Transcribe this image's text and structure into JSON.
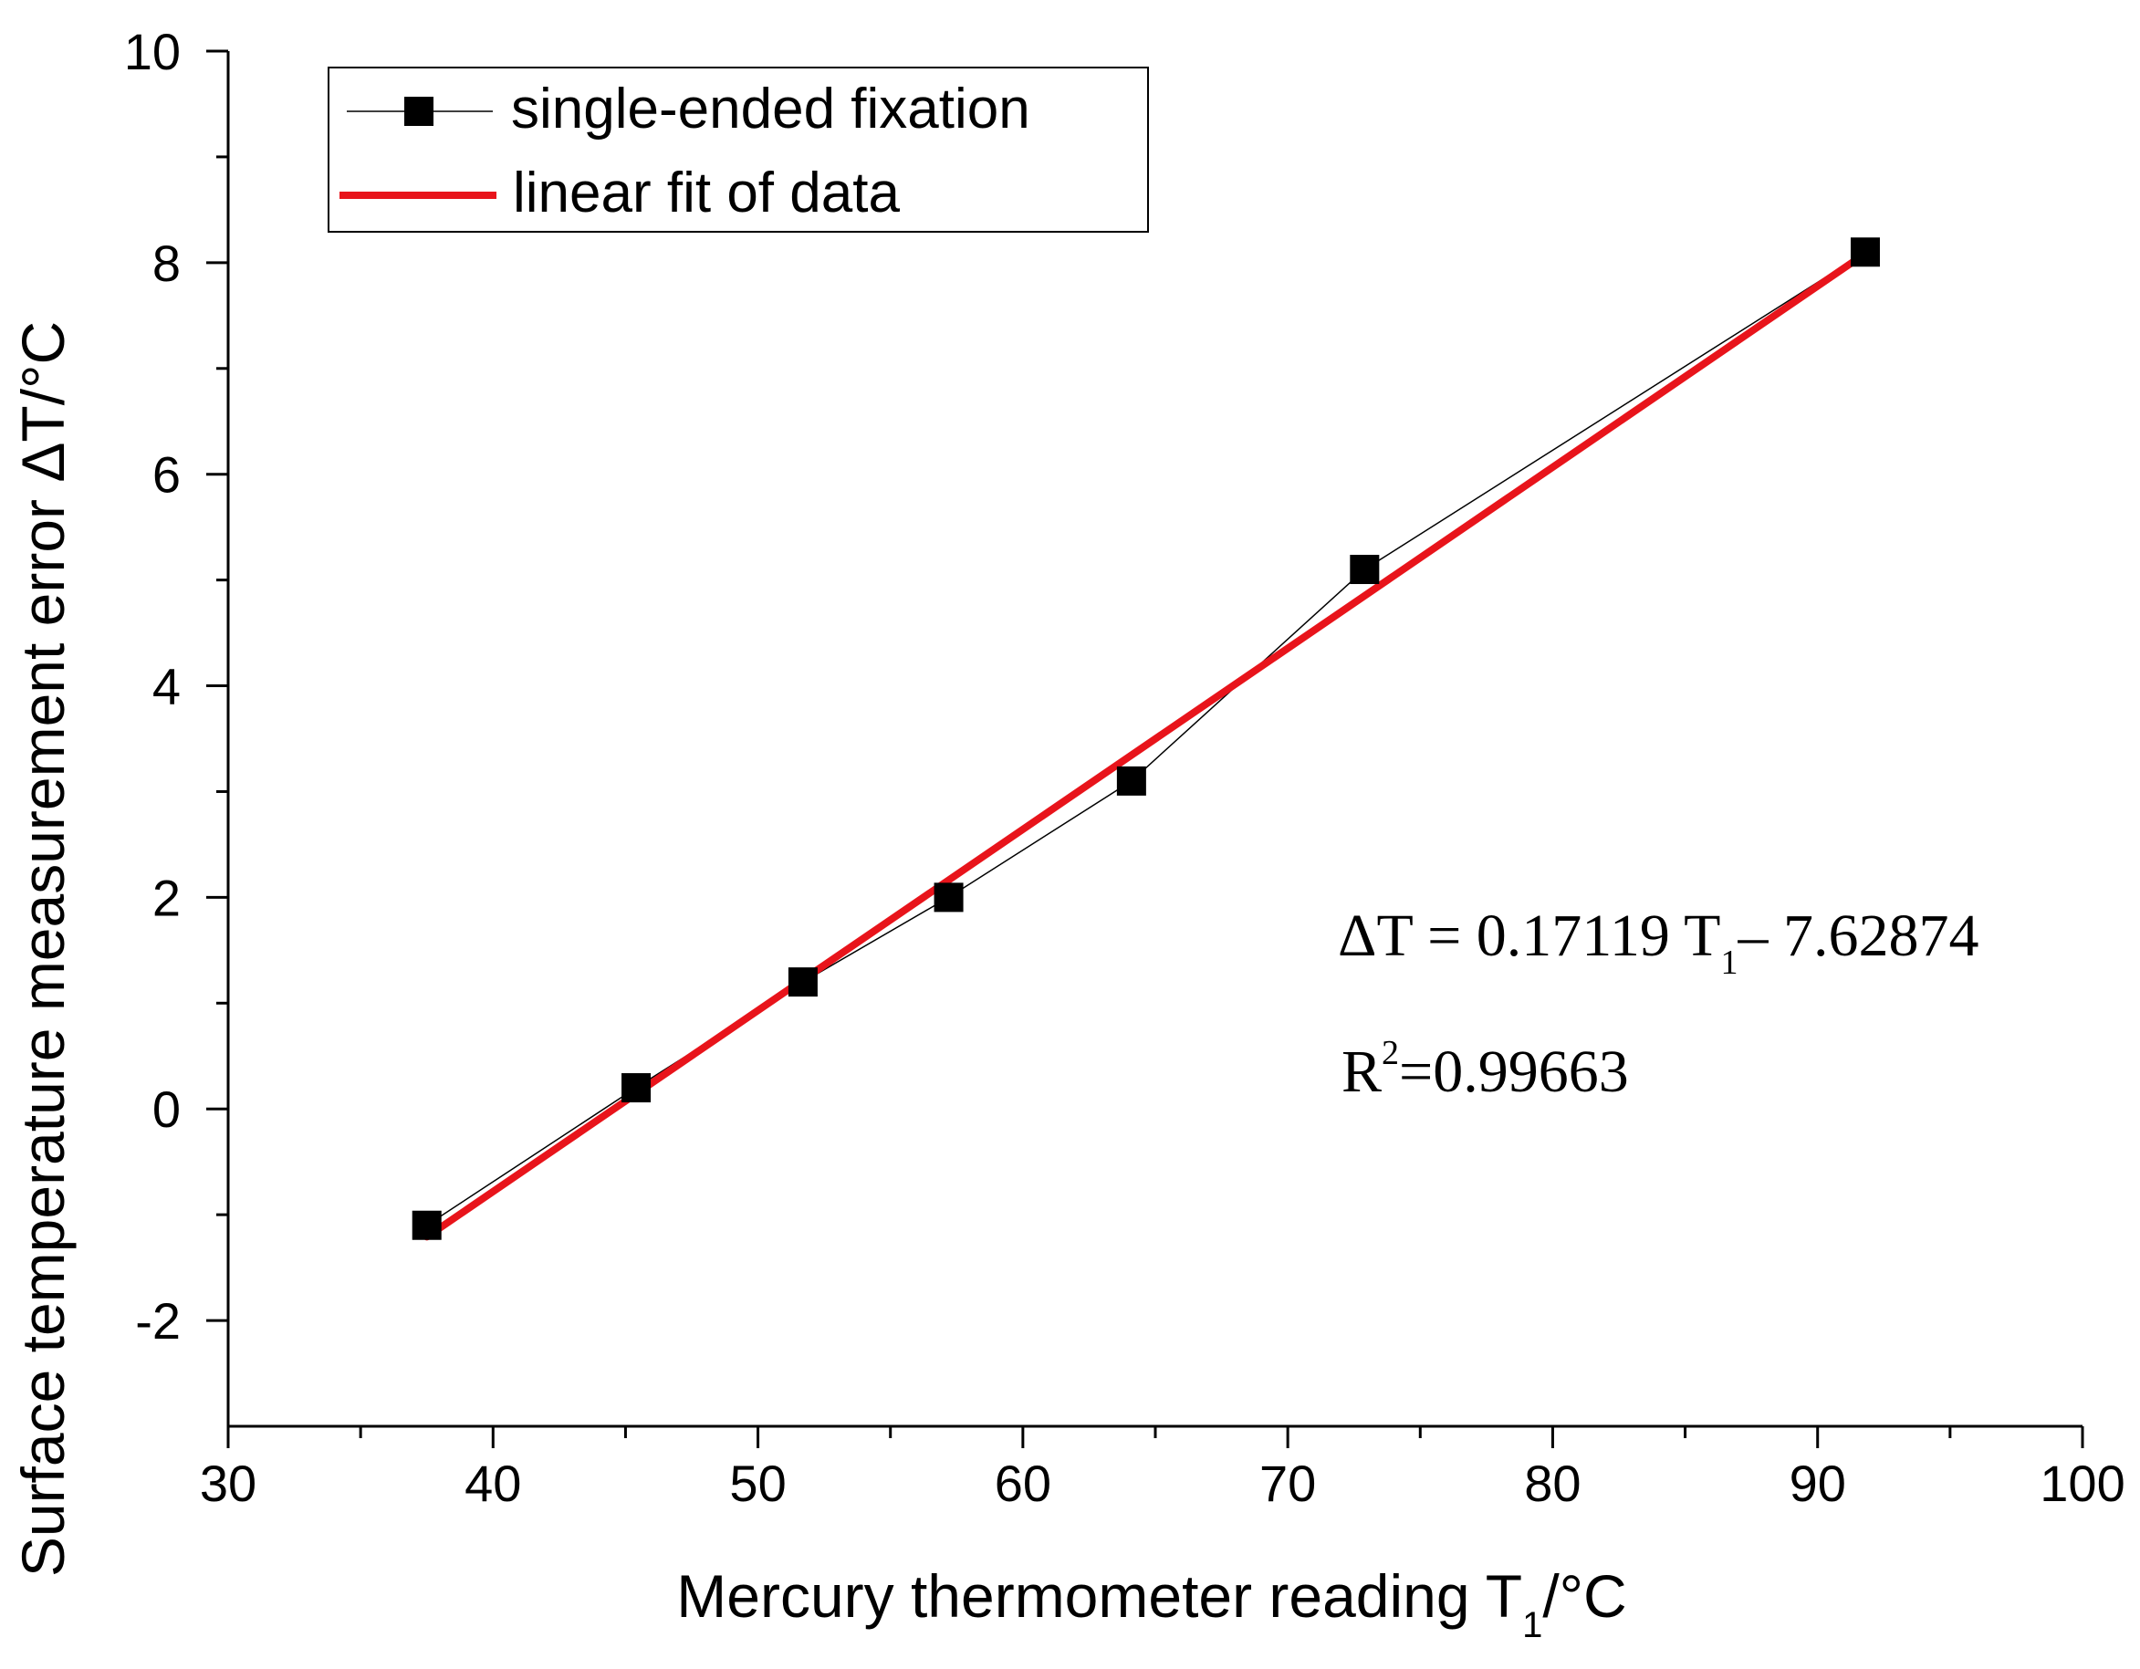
{
  "chart_data": {
    "type": "scatter",
    "title": "",
    "xlabel": {
      "main": "Mercury thermometer reading T",
      "sub": "1",
      "unit": "/°C"
    },
    "ylabel": "Surface temperature measurement error ΔT/°C",
    "xlim": [
      30,
      100
    ],
    "ylim": [
      -3,
      10
    ],
    "x_ticks": [
      30,
      40,
      50,
      60,
      70,
      80,
      90,
      100
    ],
    "x_tick_labels": [
      "30",
      "40",
      "50",
      "60",
      "70",
      "80",
      "90",
      "100"
    ],
    "y_ticks": [
      -2,
      0,
      2,
      4,
      6,
      8,
      10
    ],
    "y_tick_labels": [
      "-2",
      "0",
      "2",
      "4",
      "6",
      "8",
      "10"
    ],
    "grid": false,
    "legend_position": "top-left",
    "series": [
      {
        "name": "single-ended fixation",
        "kind": "line+square-markers",
        "color": "#000000",
        "x": [
          37.5,
          45.4,
          51.7,
          57.2,
          64.1,
          72.9,
          91.8
        ],
        "y": [
          -1.1,
          0.2,
          1.2,
          2.0,
          3.1,
          5.1,
          8.1
        ]
      },
      {
        "name": "linear fit of data",
        "kind": "line",
        "color": "#e8141b",
        "slope": 0.17119,
        "intercept": -7.62874,
        "x": [
          37.5,
          91.8
        ]
      }
    ],
    "annotations": {
      "equation": {
        "lhs": "ΔT = 0.17119 T",
        "sub": "1",
        "rhs": "– 7.62874"
      },
      "r2": {
        "label": "R",
        "sup": "2",
        "value": "=0.99663"
      }
    }
  }
}
